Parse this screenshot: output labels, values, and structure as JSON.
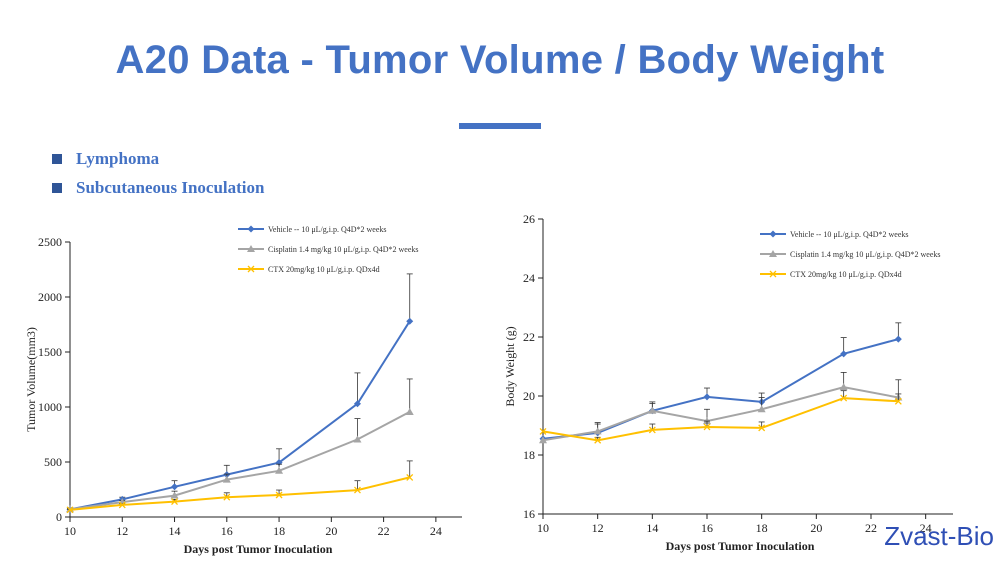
{
  "title": "A20 Data - Tumor Volume / Body Weight",
  "bullets": [
    "Lymphoma",
    "Subcutaneous Inoculation"
  ],
  "brand": "Zvast-Bio",
  "colors": {
    "title": "#4472C4",
    "vehicle": "#4472C4",
    "cisplatin": "#A5A5A5",
    "ctx": "#FFC000"
  },
  "chart_data": [
    {
      "type": "line",
      "xlabel": "Days post Tumor Inoculation",
      "ylabel": "Tumor Volume(mm3)",
      "xlim": [
        10,
        25
      ],
      "ylim": [
        0,
        2500
      ],
      "xticks": [
        10,
        12,
        14,
        16,
        18,
        20,
        22,
        24
      ],
      "yticks": [
        0,
        500,
        1000,
        1500,
        2000,
        2500
      ],
      "legend_position": "top-right",
      "x": [
        10,
        12,
        14,
        16,
        18,
        21,
        23
      ],
      "series": [
        {
          "name": "Vehicle -- 10 μL/g,i.p. Q4D*2 weeks",
          "color": "#4472C4",
          "marker": "diamond",
          "values": [
            70,
            160,
            275,
            385,
            495,
            1030,
            1780
          ],
          "errors": [
            10,
            20,
            55,
            85,
            125,
            280,
            430
          ]
        },
        {
          "name": "Cisplatin 1.4 mg/kg 10 μL/g,i.p. Q4D*2 weeks",
          "color": "#A5A5A5",
          "marker": "triangle",
          "values": [
            70,
            135,
            195,
            340,
            420,
            705,
            955
          ],
          "errors": [
            8,
            15,
            40,
            50,
            60,
            190,
            300
          ]
        },
        {
          "name": "CTX 20mg/kg 10 μL/g,i.p. QDx4d",
          "color": "#FFC000",
          "marker": "x",
          "values": [
            65,
            110,
            140,
            180,
            200,
            245,
            360
          ],
          "errors": [
            5,
            10,
            20,
            40,
            45,
            85,
            150
          ]
        }
      ]
    },
    {
      "type": "line",
      "xlabel": "Days post Tumor Inoculation",
      "ylabel": "Body Weight (g)",
      "xlim": [
        10,
        25
      ],
      "ylim": [
        16,
        26
      ],
      "xticks": [
        10,
        12,
        14,
        16,
        18,
        20,
        22,
        24
      ],
      "yticks": [
        16,
        18,
        20,
        22,
        24,
        26
      ],
      "legend_position": "top-right",
      "x": [
        10,
        12,
        14,
        16,
        18,
        21,
        23
      ],
      "series": [
        {
          "name": "Vehicle -- 10 μL/g,i.p. Q4D*2 weeks",
          "color": "#4472C4",
          "marker": "diamond",
          "values": [
            18.55,
            18.75,
            19.5,
            19.97,
            19.8,
            21.43,
            21.93
          ],
          "errors": [
            0,
            0.3,
            0.3,
            0.3,
            0.3,
            0.55,
            0.55
          ]
        },
        {
          "name": "Cisplatin 1.4 mg/kg 10 μL/g,i.p. Q4D*2 weeks",
          "color": "#A5A5A5",
          "marker": "triangle",
          "values": [
            18.5,
            18.8,
            19.5,
            19.15,
            19.55,
            20.3,
            19.95
          ],
          "errors": [
            0,
            0.3,
            0.25,
            0.4,
            0.4,
            0.5,
            0.6
          ]
        },
        {
          "name": "CTX 20mg/kg 10 μL/g,i.p. QDx4d",
          "color": "#FFC000",
          "marker": "x",
          "values": [
            18.8,
            18.5,
            18.85,
            18.95,
            18.92,
            19.93,
            19.82
          ],
          "errors": [
            0,
            0.1,
            0.2,
            0.2,
            0.2,
            0.25,
            0.25
          ]
        }
      ]
    }
  ]
}
